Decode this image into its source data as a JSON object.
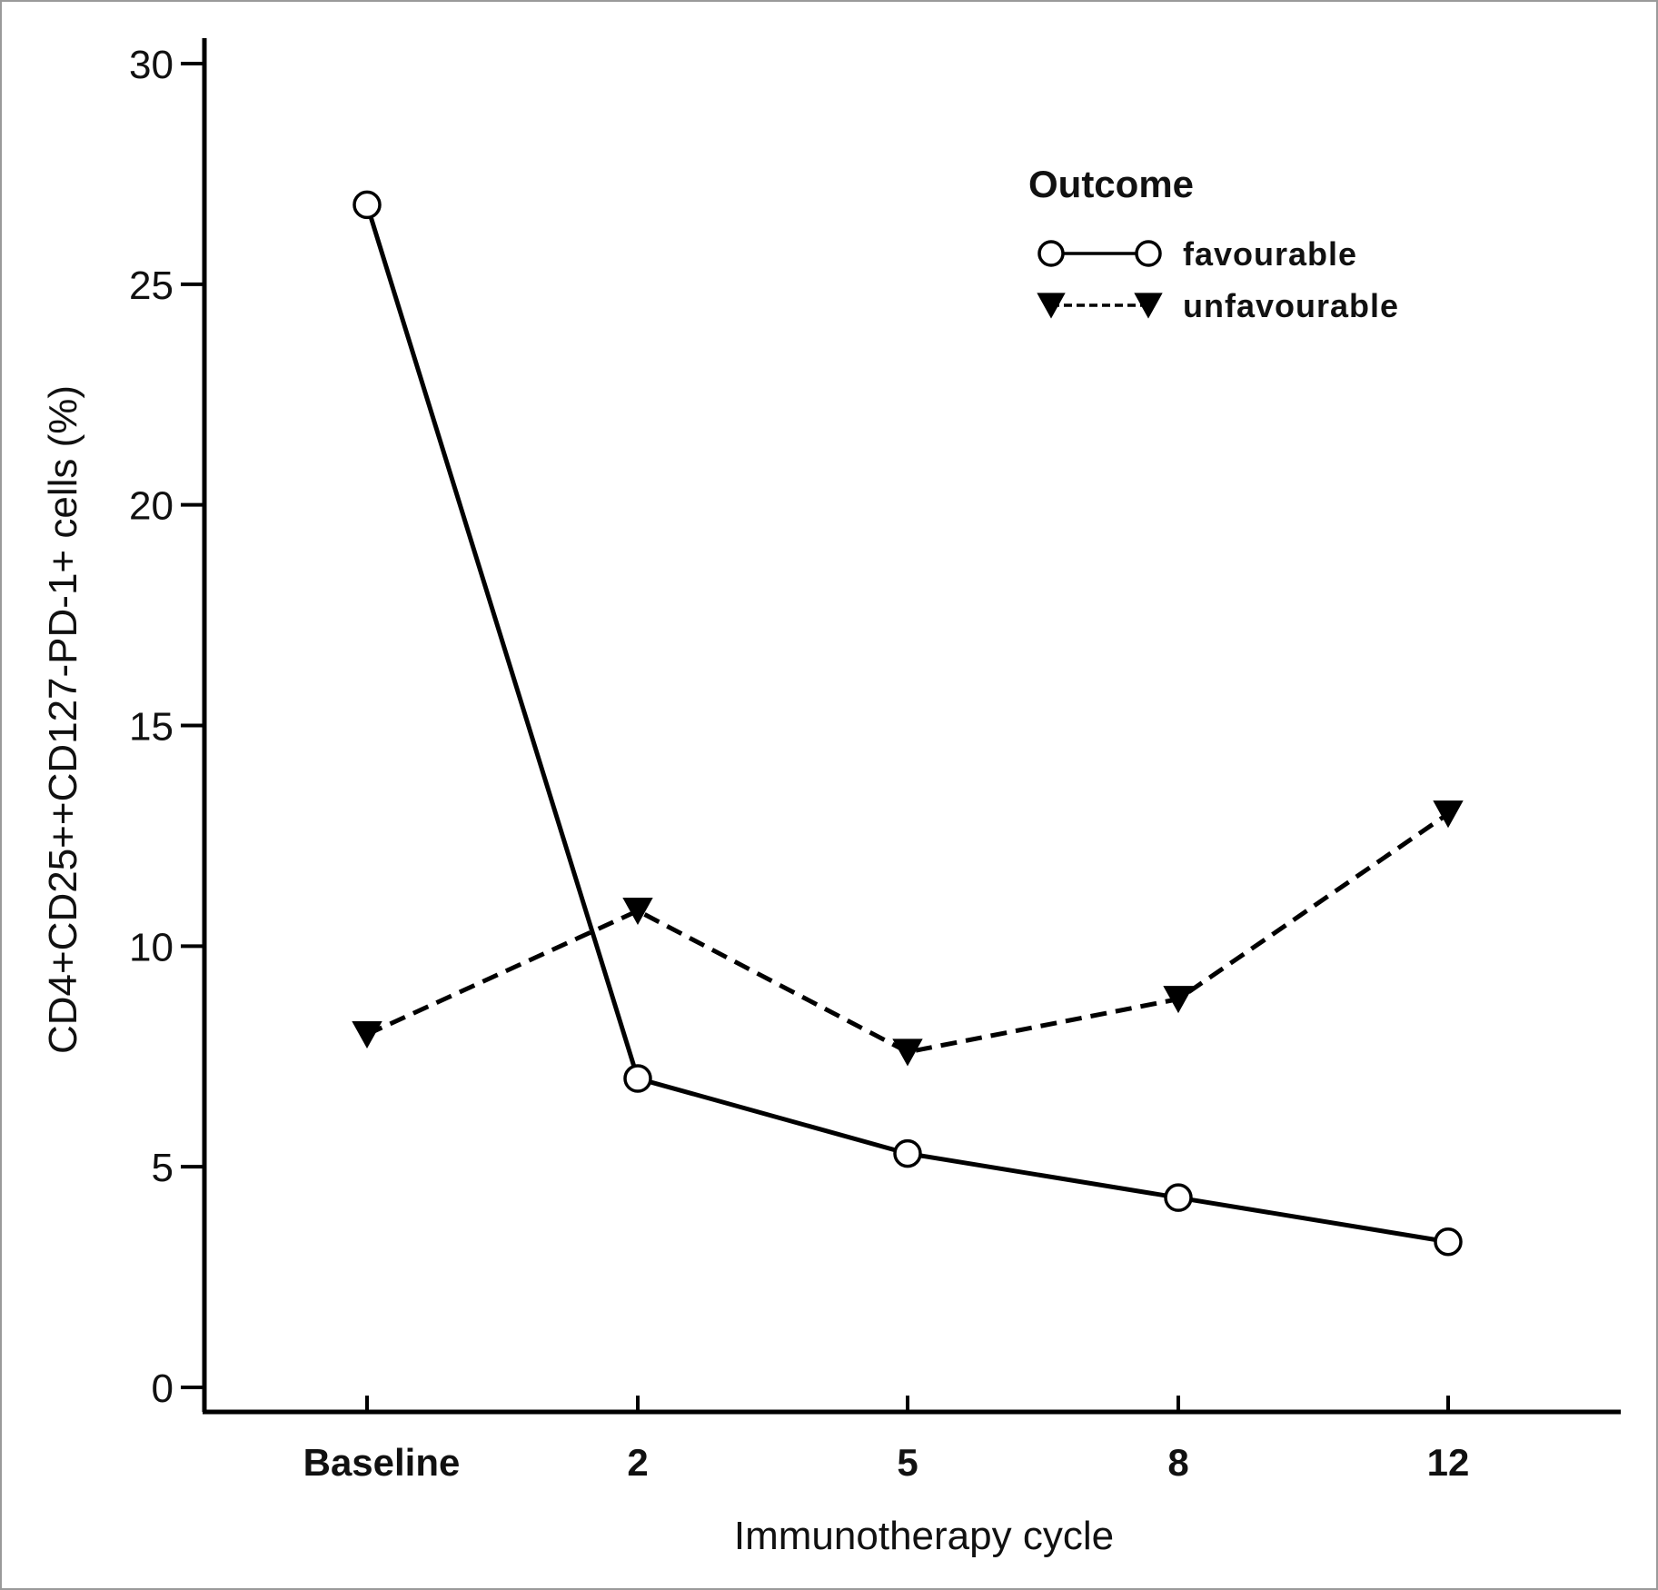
{
  "chart_data": {
    "type": "line",
    "categories": [
      "Baseline",
      "2",
      "5",
      "8",
      "12"
    ],
    "xlabel": "Immunotherapy cycle",
    "ylabel": "CD4+CD25++CD127-PD-1+ cells (%)",
    "ylim": [
      0,
      30
    ],
    "yticks": [
      0,
      5,
      10,
      15,
      20,
      25,
      30
    ],
    "grid": false,
    "legend": {
      "title": "Outcome",
      "placement": "top-right"
    },
    "series": [
      {
        "name": "favourable",
        "values": [
          26.8,
          7.0,
          5.3,
          4.3,
          3.3
        ],
        "marker": "open-circle",
        "line_style": "solid",
        "color": "#000000"
      },
      {
        "name": "unfavourable",
        "values": [
          8.0,
          10.8,
          7.6,
          8.8,
          13.0
        ],
        "marker": "filled-down-triangle",
        "line_style": "dashed",
        "color": "#000000"
      }
    ]
  }
}
